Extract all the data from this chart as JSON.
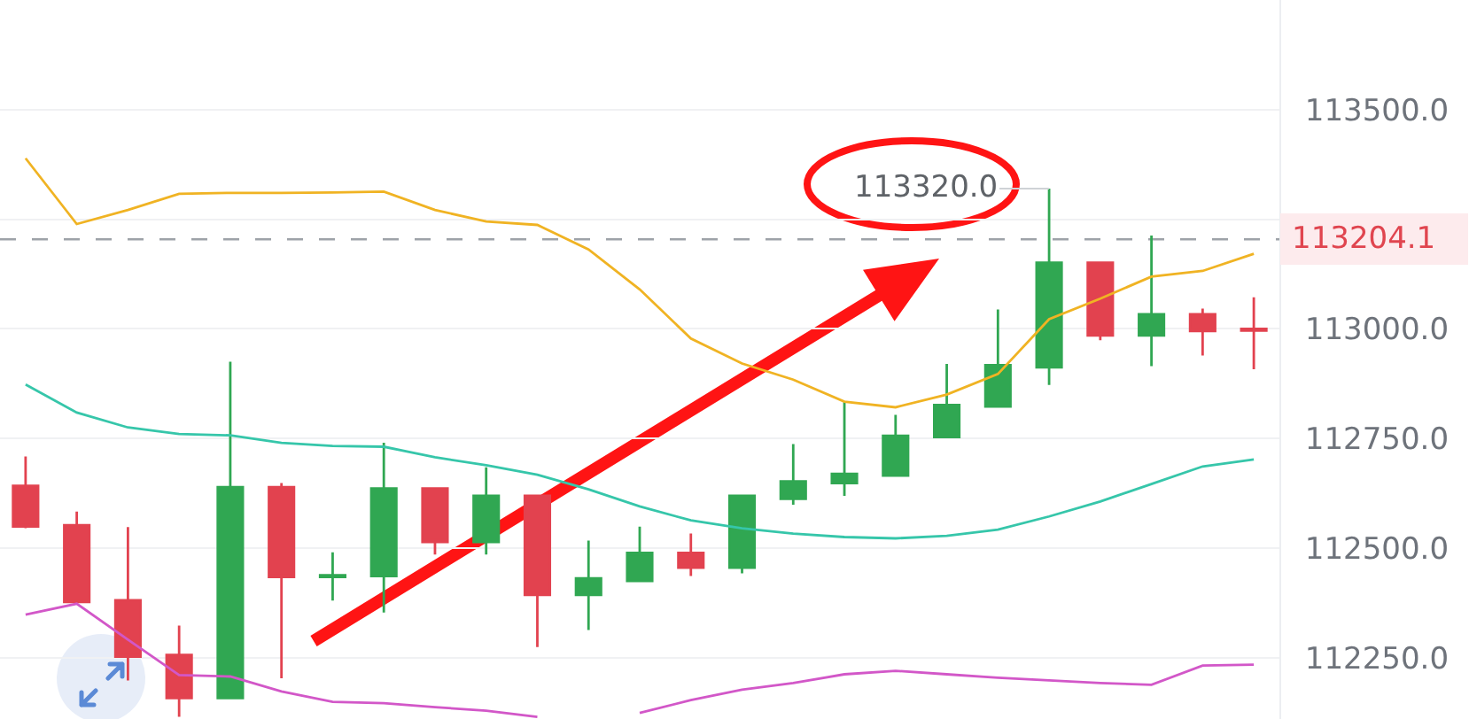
{
  "chart_data": {
    "type": "candlestick",
    "categories": [
      null,
      null,
      null,
      null,
      null,
      null,
      null,
      null,
      null,
      null,
      null,
      null,
      null,
      null,
      null,
      null,
      null,
      null,
      null,
      null,
      null,
      null,
      null,
      null,
      null
    ],
    "ohlc": [
      [
        112642,
        112709,
        112545,
        112549
      ],
      [
        112552,
        112583,
        112375,
        112377
      ],
      [
        112381,
        112548,
        112198,
        112252
      ],
      [
        112256,
        112323,
        112115,
        112158
      ],
      [
        112158,
        112925,
        112158,
        112639
      ],
      [
        112639,
        112648,
        112203,
        112434
      ],
      [
        112434,
        112490,
        112380,
        112438
      ],
      [
        112436,
        112740,
        112353,
        112636
      ],
      [
        112636,
        112636,
        112485,
        112514
      ],
      [
        112514,
        112684,
        112485,
        112619
      ],
      [
        112619,
        112619,
        112274,
        112393
      ],
      [
        112393,
        112517,
        112313,
        112431
      ],
      [
        112425,
        112549,
        112425,
        112489
      ],
      [
        112489,
        112533,
        112436,
        112455
      ],
      [
        112455,
        112619,
        112442,
        112619
      ],
      [
        112612,
        112737,
        112599,
        112652
      ],
      [
        112648,
        112834,
        112619,
        112669
      ],
      [
        112665,
        112804,
        112665,
        112756
      ],
      [
        112753,
        112920,
        112753,
        112826
      ],
      [
        112823,
        113044,
        112823,
        112917
      ],
      [
        112912,
        113320,
        112872,
        113151
      ],
      [
        113151,
        113151,
        112974,
        112985
      ],
      [
        112985,
        113213,
        112915,
        113033
      ],
      [
        113033,
        113046,
        112939,
        112995
      ],
      [
        113000,
        113072,
        112908,
        112996
      ]
    ],
    "colors": [
      "#e2424f",
      "#e2424f",
      "#e2424f",
      "#e2424f",
      "#30a752",
      "#e2424f",
      "#30a752",
      "#30a752",
      "#e2424f",
      "#30a752",
      "#e2424f",
      "#30a752",
      "#30a752",
      "#e2424f",
      "#30a752",
      "#30a752",
      "#30a752",
      "#30a752",
      "#30a752",
      "#30a752",
      "#30a752",
      "#e2424f",
      "#30a752",
      "#e2424f",
      "#e2424f"
    ],
    "series": [
      {
        "type": "line",
        "color": "#f0b323",
        "values": [
          113389,
          113239,
          113271,
          113308,
          113310,
          113310,
          113311,
          113313,
          113271,
          113245,
          113237,
          113181,
          113090,
          112978,
          112921,
          112884,
          112834,
          112821,
          112850,
          112897,
          113022,
          113069,
          113119,
          113132,
          113171
        ]
      },
      {
        "type": "line",
        "color": "#36c6aa",
        "values": [
          112873,
          112809,
          112775,
          112760,
          112757,
          112740,
          112733,
          112731,
          112707,
          112689,
          112667,
          112634,
          112595,
          112563,
          112545,
          112533,
          112525,
          112522,
          112528,
          112542,
          112572,
          112606,
          112646,
          112686,
          112702
        ]
      },
      {
        "type": "line",
        "color": "#d257c8",
        "values": [
          112348,
          112373,
          112291,
          112210,
          112207,
          112173,
          112149,
          112146,
          112137,
          112129,
          112115,
          null,
          112124,
          112153,
          112177,
          112192,
          112212,
          112220,
          112212,
          112204,
          112198,
          112192,
          112188,
          112232,
          112234
        ]
      }
    ],
    "ylim": [
      112110,
      113750
    ],
    "yticks": [
      {
        "value": 112250,
        "label": "112250.0"
      },
      {
        "value": 112500,
        "label": "112500.0"
      },
      {
        "value": 112750,
        "label": "112750.0"
      },
      {
        "value": 113000,
        "label": "113000.0"
      },
      {
        "value": 113250,
        "label": null
      },
      {
        "value": 113500,
        "label": "113500.0"
      }
    ],
    "tick_labels": "y",
    "grid": "y",
    "annotations": [
      "113320.0"
    ],
    "ref_lines": [
      {
        "axis": "y",
        "value": 113204.1,
        "label": "113204.1",
        "color": "#9ea2a8",
        "line_style": "dashed"
      }
    ]
  }
}
